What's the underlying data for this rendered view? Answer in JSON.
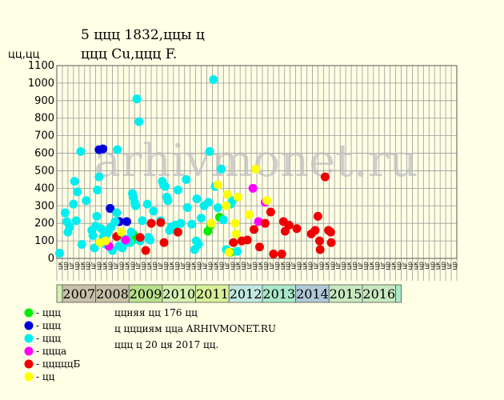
{
  "chart_data": {
    "type": "scatter",
    "title": "5 ццц 1832,ццы ц",
    "subtitle": "ццц Cu,ццц F.",
    "ylabel": "цц,цц",
    "ylim": [
      0,
      1100
    ],
    "yticks": [
      0,
      100,
      200,
      300,
      400,
      500,
      600,
      700,
      800,
      900,
      1000,
      1100
    ],
    "grid": true,
    "columns": [
      "цк",
      "цр",
      "цг",
      "цр",
      "цк",
      "цр",
      "цг",
      "цр",
      "цк",
      "цр",
      "цг",
      "цр",
      "цк",
      "цр",
      "цг",
      "цр",
      "цк",
      "цр",
      "цг",
      "цр",
      "цк",
      "цр",
      "цг",
      "цр",
      "цк",
      "цр",
      "цг",
      "цр",
      "цк",
      "цр",
      "цг",
      "цр",
      "цк",
      "цр",
      "цг",
      "цр",
      "цк",
      "цр",
      "цг",
      "цр",
      "цк",
      "цр",
      "цг",
      "цр",
      "цк",
      "цр",
      "цг",
      "цр",
      "цк",
      "цр",
      "цг",
      "цр",
      "цк",
      "цр",
      "цг",
      "цр",
      "цк",
      "цр",
      "цг",
      "цр",
      "цк",
      "цр",
      "цг",
      "цр",
      "цк",
      "цр",
      "цг",
      "цр",
      "цк",
      "цр",
      "цг",
      "цр"
    ],
    "years": [
      {
        "label": "",
        "color": "#d4f0b0"
      },
      {
        "label": "2007",
        "color": "#c9c0aa"
      },
      {
        "label": "2008",
        "color": "#c9c0aa"
      },
      {
        "label": "2009",
        "color": "#b8e08c"
      },
      {
        "label": "2010",
        "color": "#d4f0b0"
      },
      {
        "label": "2011",
        "color": "#d8f098"
      },
      {
        "label": "2012",
        "color": "#c0e8e0"
      },
      {
        "label": "2013",
        "color": "#a8e8c8"
      },
      {
        "label": "2014",
        "color": "#b0c8d8"
      },
      {
        "label": "2015",
        "color": "#c8e8c0"
      },
      {
        "label": "2016",
        "color": "#c8e8c0"
      },
      {
        "label": "",
        "color": "#a8e8c8"
      }
    ],
    "watermark": "arhivmonet.ru",
    "series": [
      {
        "name": "- ццц",
        "color": "#00ee00",
        "points": [
          [
            13.8,
            135
          ],
          [
            14.2,
            110
          ],
          [
            27.2,
            155
          ],
          [
            27.7,
            190
          ],
          [
            29.3,
            235
          ],
          [
            31.3,
            35
          ]
        ]
      },
      {
        "name": "- ццц",
        "color": "#0000dd",
        "points": [
          [
            7.6,
            620
          ],
          [
            8.3,
            625
          ],
          [
            9.6,
            285
          ],
          [
            11.3,
            210
          ],
          [
            12.6,
            210
          ]
        ]
      },
      {
        "name": "- ццц",
        "color": "#00eeee",
        "points": [
          [
            0.5,
            30
          ],
          [
            1.5,
            260
          ],
          [
            1.8,
            210
          ],
          [
            2.0,
            150
          ],
          [
            2.3,
            180
          ],
          [
            3.0,
            310
          ],
          [
            3.2,
            440
          ],
          [
            3.5,
            215
          ],
          [
            3.7,
            380
          ],
          [
            4.3,
            610
          ],
          [
            4.5,
            80
          ],
          [
            5.3,
            330
          ],
          [
            6.3,
            160
          ],
          [
            6.5,
            130
          ],
          [
            6.8,
            60
          ],
          [
            7.0,
            185
          ],
          [
            7.2,
            240
          ],
          [
            7.3,
            390
          ],
          [
            7.6,
            465
          ],
          [
            8.0,
            170
          ],
          [
            8.3,
            120
          ],
          [
            8.6,
            135
          ],
          [
            8.8,
            80
          ],
          [
            9.0,
            140
          ],
          [
            9.3,
            160
          ],
          [
            9.8,
            180
          ],
          [
            10.0,
            45
          ],
          [
            10.5,
            210
          ],
          [
            10.8,
            260
          ],
          [
            10.9,
            620
          ],
          [
            11.2,
            70
          ],
          [
            11.5,
            140
          ],
          [
            11.8,
            60
          ],
          [
            12.2,
            110
          ],
          [
            12.4,
            90
          ],
          [
            12.8,
            110
          ],
          [
            13.2,
            90
          ],
          [
            13.4,
            150
          ],
          [
            13.6,
            370
          ],
          [
            13.8,
            350
          ],
          [
            14.0,
            320
          ],
          [
            14.2,
            300
          ],
          [
            14.4,
            910
          ],
          [
            14.8,
            780
          ],
          [
            15.0,
            100
          ],
          [
            15.4,
            215
          ],
          [
            16.3,
            310
          ],
          [
            16.5,
            120
          ],
          [
            16.8,
            105
          ],
          [
            17.4,
            270
          ],
          [
            18.7,
            215
          ],
          [
            19.0,
            440
          ],
          [
            19.2,
            420
          ],
          [
            19.5,
            410
          ],
          [
            19.8,
            350
          ],
          [
            20.0,
            330
          ],
          [
            20.3,
            160
          ],
          [
            20.6,
            180
          ],
          [
            21.3,
            190
          ],
          [
            21.8,
            390
          ],
          [
            22.3,
            200
          ],
          [
            23.3,
            450
          ],
          [
            23.5,
            290
          ],
          [
            24.3,
            195
          ],
          [
            24.8,
            50
          ],
          [
            25.1,
            100
          ],
          [
            25.2,
            340
          ],
          [
            25.5,
            80
          ],
          [
            26.0,
            230
          ],
          [
            26.5,
            300
          ],
          [
            27.3,
            320
          ],
          [
            27.5,
            610
          ],
          [
            28.2,
            1020
          ],
          [
            28.5,
            410
          ],
          [
            29.0,
            290
          ],
          [
            29.6,
            510
          ],
          [
            30.0,
            220
          ],
          [
            30.5,
            50
          ],
          [
            31.3,
            310
          ],
          [
            31.6,
            330
          ],
          [
            32.5,
            40
          ]
        ]
      },
      {
        "name": "- ццца",
        "color": "#ff00ff",
        "points": [
          [
            9.4,
            70
          ],
          [
            12.4,
            105
          ],
          [
            35.3,
            400
          ],
          [
            36.3,
            210
          ],
          [
            37.5,
            320
          ]
        ]
      },
      {
        "name": "- цццццБ",
        "color": "#ee0000",
        "points": [
          [
            10.8,
            125
          ],
          [
            15.0,
            120
          ],
          [
            16.0,
            45
          ],
          [
            17.0,
            200
          ],
          [
            18.7,
            205
          ],
          [
            19.3,
            90
          ],
          [
            21.8,
            150
          ],
          [
            31.8,
            90
          ],
          [
            33.3,
            100
          ],
          [
            34.3,
            105
          ],
          [
            35.5,
            165
          ],
          [
            36.5,
            65
          ],
          [
            37.5,
            200
          ],
          [
            38.5,
            265
          ],
          [
            39.0,
            25
          ],
          [
            40.5,
            25
          ],
          [
            40.8,
            210
          ],
          [
            41.1,
            155
          ],
          [
            41.8,
            190
          ],
          [
            43.2,
            170
          ],
          [
            45.8,
            140
          ],
          [
            46.5,
            160
          ],
          [
            47.0,
            240
          ],
          [
            47.3,
            100
          ],
          [
            47.4,
            50
          ],
          [
            48.3,
            465
          ],
          [
            48.9,
            160
          ],
          [
            49.3,
            150
          ],
          [
            49.4,
            90
          ]
        ]
      },
      {
        "name": "- цц",
        "color": "#ffff00",
        "points": [
          [
            7.8,
            90
          ],
          [
            8.8,
            100
          ],
          [
            11.6,
            150
          ],
          [
            27.8,
            200
          ],
          [
            29.0,
            420
          ],
          [
            30.5,
            300
          ],
          [
            30.7,
            365
          ],
          [
            31.0,
            35
          ],
          [
            32.1,
            200
          ],
          [
            32.3,
            140
          ],
          [
            32.6,
            350
          ],
          [
            34.6,
            250
          ],
          [
            35.8,
            510
          ],
          [
            37.8,
            330
          ]
        ]
      }
    ]
  },
  "footer": {
    "line1": "ццняя цц 176 цц",
    "line2": "ц ццциям цца ARHIVMONET.RU",
    "line3": "ццц ц 20 ця 2017 цц."
  }
}
